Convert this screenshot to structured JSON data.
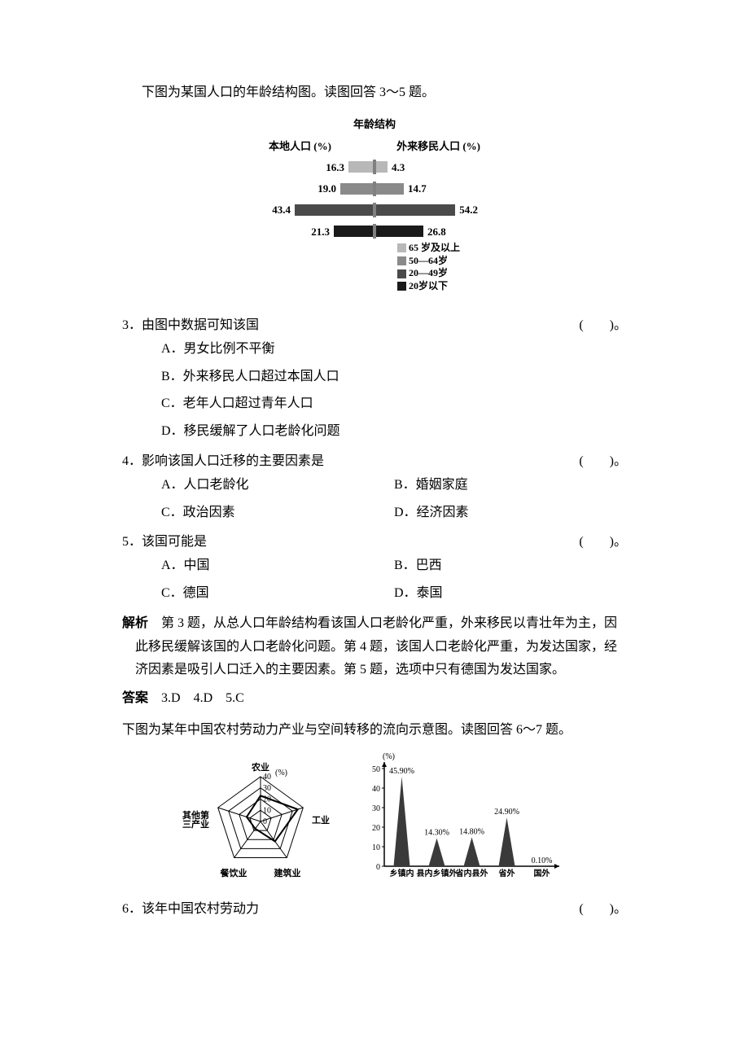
{
  "intro1": "下图为某国人口的年龄结构图。读图回答 3～5 题。",
  "pyramid": {
    "title": "年龄结构",
    "left_label": "本地人口 (%)",
    "right_label": "外来移民人口 (%)",
    "rows": [
      {
        "left_val": "16.3",
        "left_w": 30,
        "right_val": "4.3",
        "right_w": 14,
        "left_color": "#b8b8b8",
        "right_color": "#b8b8b8"
      },
      {
        "left_val": "19.0",
        "left_w": 40,
        "right_val": "14.7",
        "right_w": 34,
        "left_color": "#8a8a8a",
        "right_color": "#8a8a8a"
      },
      {
        "left_val": "43.4",
        "left_w": 96,
        "right_val": "54.2",
        "right_w": 116,
        "left_color": "#4a4a4a",
        "right_color": "#4a4a4a"
      },
      {
        "left_val": "21.3",
        "left_w": 48,
        "right_val": "26.8",
        "right_w": 58,
        "left_color": "#1a1a1a",
        "right_color": "#1a1a1a"
      }
    ],
    "legend": [
      {
        "label": "65 岁及以上",
        "color": "#b8b8b8"
      },
      {
        "label": "50—64岁",
        "color": "#8a8a8a"
      },
      {
        "label": "20—49岁",
        "color": "#4a4a4a"
      },
      {
        "label": "20岁以下",
        "color": "#1a1a1a"
      }
    ]
  },
  "q3": {
    "num": "3．",
    "stem": "由图中数据可知该国",
    "paren": "(　　)。",
    "opts": {
      "a": "A．男女比例不平衡",
      "b": "B．外来移民人口超过本国人口",
      "c": "C．老年人口超过青年人口",
      "d": "D．移民缓解了人口老龄化问题"
    }
  },
  "q4": {
    "num": "4．",
    "stem": "影响该国人口迁移的主要因素是",
    "paren": "(　　)。",
    "opts": {
      "a": "A．人口老龄化",
      "b": "B．婚姻家庭",
      "c": "C．政治因素",
      "d": "D．经济因素"
    }
  },
  "q5": {
    "num": "5．",
    "stem": "该国可能是",
    "paren": "(　　)。",
    "opts": {
      "a": "A．中国",
      "b": "B．巴西",
      "c": "C．德国",
      "d": "D．泰国"
    }
  },
  "analysis": {
    "label": "解析",
    "text": "　第 3 题，从总人口年龄结构看该国人口老龄化严重，外来移民以青壮年为主，因此移民缓解该国的人口老龄化问题。第 4 题，该国人口老龄化严重，为发达国家，经济因素是吸引人口迁入的主要因素。第 5 题，选项中只有德国为发达国家。"
  },
  "answer": {
    "label": "答案",
    "text": "　3.D　4.D　5.C"
  },
  "intro2": "下图为某年中国农村劳动力产业与空间转移的流向示意图。读图回答 6～7 题。",
  "radar": {
    "axes": [
      "农业",
      "工业",
      "建筑业",
      "餐饮业",
      "其他第\n三产业"
    ],
    "rings": [
      "0",
      "10",
      "20",
      "30",
      "40"
    ],
    "ylabel": "(%)",
    "values": [
      23,
      35,
      22,
      8,
      13
    ],
    "max": 40,
    "line_color": "#000000",
    "bg": "#ffffff"
  },
  "barchart": {
    "ylabel": "(%)",
    "ylim": [
      0,
      50
    ],
    "ytick": 10,
    "categories": [
      "乡镇内",
      "县内乡镇外",
      "省内县外",
      "省外",
      "国外"
    ],
    "values": [
      45.9,
      14.3,
      14.8,
      24.9,
      0.1
    ],
    "value_labels": [
      "45.90%",
      "14.30%",
      "14.80%",
      "24.90%",
      "0.10%"
    ],
    "bar_color": "#3a3a3a",
    "bg": "#ffffff",
    "axis_color": "#000000"
  },
  "q6": {
    "num": "6．",
    "stem": "该年中国农村劳动力",
    "paren": "(　　)。"
  }
}
